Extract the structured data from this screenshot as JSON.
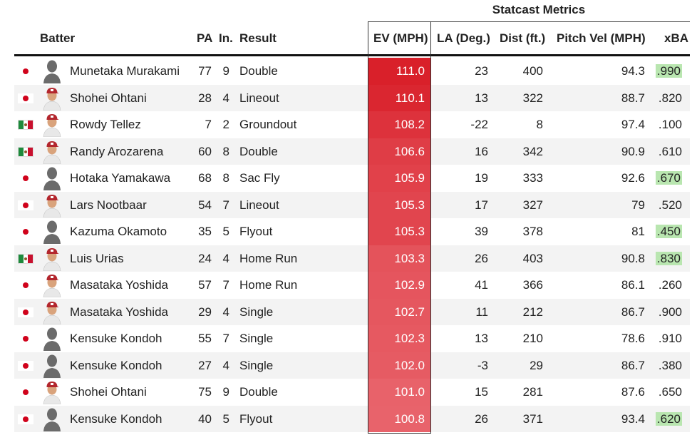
{
  "group_header": "Statcast Metrics",
  "columns": {
    "batter": "Batter",
    "pa": "PA",
    "inning": "In.",
    "result": "Result",
    "ev": "EV (MPH)",
    "la": "LA (Deg.)",
    "dist": "Dist (ft.)",
    "pitch_vel": "Pitch Vel (MPH)",
    "xba": "xBA"
  },
  "colors": {
    "ev_high": "#d9202a",
    "ev_low": "#e8636b",
    "xba_highlight": "#b9e6b0"
  },
  "rows": [
    {
      "flag": "japan-flag",
      "avatar": "silhouette-avatar",
      "batter": "Munetaka Murakami",
      "pa": "77",
      "inning": "9",
      "result": "Double",
      "ev": "111.0",
      "la": "23",
      "dist": "400",
      "pitch_vel": "94.3",
      "xba": ".990",
      "xba_highlight": true
    },
    {
      "flag": "japan-flag",
      "avatar": "player-photo-avatar",
      "batter": "Shohei Ohtani",
      "pa": "28",
      "inning": "4",
      "result": "Lineout",
      "ev": "110.1",
      "la": "13",
      "dist": "322",
      "pitch_vel": "88.7",
      "xba": ".820",
      "xba_highlight": false
    },
    {
      "flag": "mexico-flag",
      "avatar": "player-photo-avatar",
      "batter": "Rowdy Tellez",
      "pa": "7",
      "inning": "2",
      "result": "Groundout",
      "ev": "108.2",
      "la": "-22",
      "dist": "8",
      "pitch_vel": "97.4",
      "xba": ".100",
      "xba_highlight": false
    },
    {
      "flag": "mexico-flag",
      "avatar": "player-photo-avatar",
      "batter": "Randy Arozarena",
      "pa": "60",
      "inning": "8",
      "result": "Double",
      "ev": "106.6",
      "la": "16",
      "dist": "342",
      "pitch_vel": "90.9",
      "xba": ".610",
      "xba_highlight": false
    },
    {
      "flag": "japan-flag",
      "avatar": "silhouette-avatar",
      "batter": "Hotaka Yamakawa",
      "pa": "68",
      "inning": "8",
      "result": "Sac Fly",
      "ev": "105.9",
      "la": "19",
      "dist": "333",
      "pitch_vel": "92.6",
      "xba": ".670",
      "xba_highlight": true
    },
    {
      "flag": "japan-flag",
      "avatar": "player-photo-avatar",
      "batter": "Lars Nootbaar",
      "pa": "54",
      "inning": "7",
      "result": "Lineout",
      "ev": "105.3",
      "la": "17",
      "dist": "327",
      "pitch_vel": "79",
      "xba": ".520",
      "xba_highlight": false
    },
    {
      "flag": "japan-flag",
      "avatar": "silhouette-avatar",
      "batter": "Kazuma Okamoto",
      "pa": "35",
      "inning": "5",
      "result": "Flyout",
      "ev": "105.3",
      "la": "39",
      "dist": "378",
      "pitch_vel": "81",
      "xba": ".450",
      "xba_highlight": true
    },
    {
      "flag": "mexico-flag",
      "avatar": "player-photo-avatar",
      "batter": "Luis Urias",
      "pa": "24",
      "inning": "4",
      "result": "Home Run",
      "ev": "103.3",
      "la": "26",
      "dist": "403",
      "pitch_vel": "90.8",
      "xba": ".830",
      "xba_highlight": true
    },
    {
      "flag": "japan-flag",
      "avatar": "player-photo-avatar",
      "batter": "Masataka Yoshida",
      "pa": "57",
      "inning": "7",
      "result": "Home Run",
      "ev": "102.9",
      "la": "41",
      "dist": "366",
      "pitch_vel": "86.1",
      "xba": ".260",
      "xba_highlight": false
    },
    {
      "flag": "japan-flag",
      "avatar": "player-photo-avatar",
      "batter": "Masataka Yoshida",
      "pa": "29",
      "inning": "4",
      "result": "Single",
      "ev": "102.7",
      "la": "11",
      "dist": "212",
      "pitch_vel": "86.7",
      "xba": ".900",
      "xba_highlight": false
    },
    {
      "flag": "japan-flag",
      "avatar": "silhouette-avatar",
      "batter": "Kensuke Kondoh",
      "pa": "55",
      "inning": "7",
      "result": "Single",
      "ev": "102.3",
      "la": "13",
      "dist": "210",
      "pitch_vel": "78.6",
      "xba": ".910",
      "xba_highlight": false
    },
    {
      "flag": "japan-flag",
      "avatar": "silhouette-avatar",
      "batter": "Kensuke Kondoh",
      "pa": "27",
      "inning": "4",
      "result": "Single",
      "ev": "102.0",
      "la": "-3",
      "dist": "29",
      "pitch_vel": "86.7",
      "xba": ".380",
      "xba_highlight": false
    },
    {
      "flag": "japan-flag",
      "avatar": "player-photo-avatar",
      "batter": "Shohei Ohtani",
      "pa": "75",
      "inning": "9",
      "result": "Double",
      "ev": "101.0",
      "la": "15",
      "dist": "281",
      "pitch_vel": "87.6",
      "xba": ".650",
      "xba_highlight": false
    },
    {
      "flag": "japan-flag",
      "avatar": "silhouette-avatar",
      "batter": "Kensuke Kondoh",
      "pa": "40",
      "inning": "5",
      "result": "Flyout",
      "ev": "100.8",
      "la": "26",
      "dist": "371",
      "pitch_vel": "93.4",
      "xba": ".620",
      "xba_highlight": true
    }
  ]
}
